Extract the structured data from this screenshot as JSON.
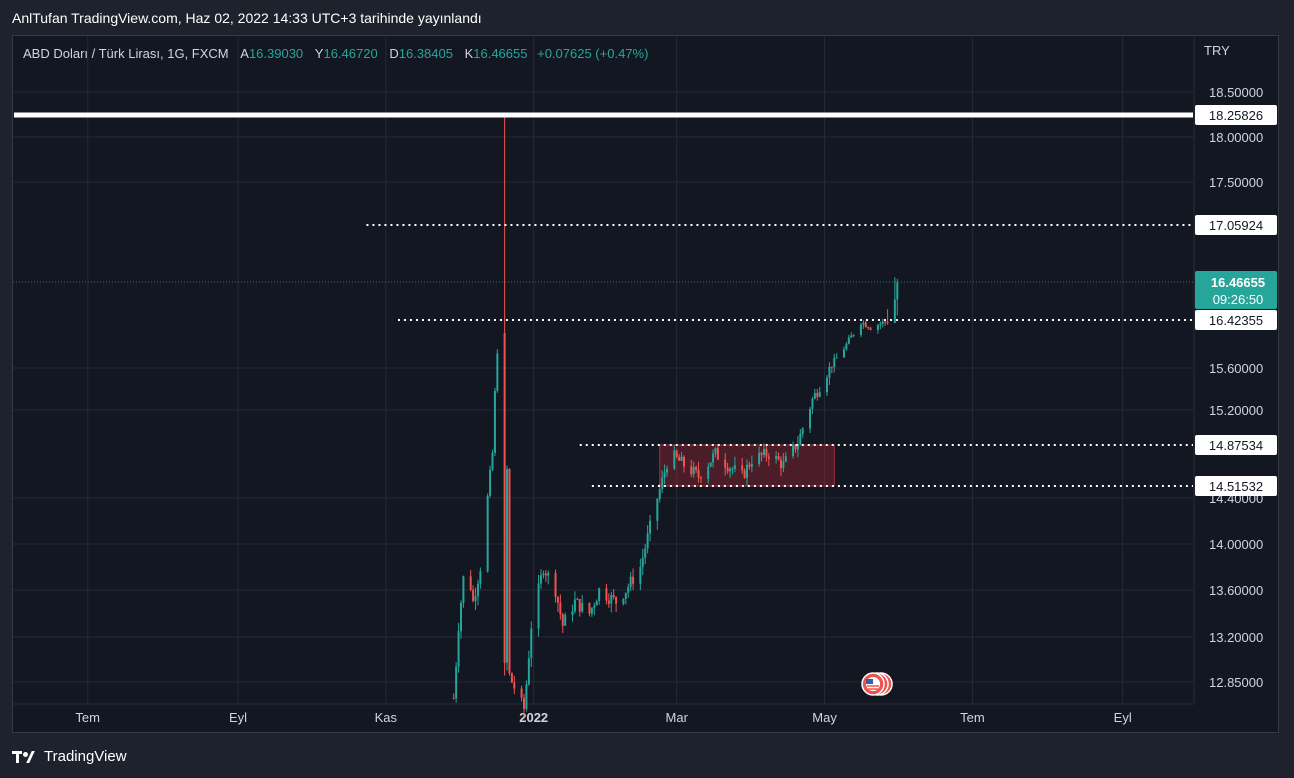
{
  "header": {
    "publish_line": "AnlTufan TradingView.com, Haz 02, 2022 14:33 UTC+3 tarihinde yayınlandı"
  },
  "legend": {
    "symbol": "ABD Doları / Türk Lirası, 1G, FXCM",
    "open_label": "A",
    "open": "16.39030",
    "high_label": "Y",
    "high": "16.46720",
    "low_label": "D",
    "low": "16.38405",
    "close_label": "K",
    "close": "16.46655",
    "change": "+0.07625 (+0.47%)"
  },
  "currency": "TRY",
  "footer": {
    "brand": "TradingView"
  },
  "chart_data": {
    "type": "candlestick",
    "symbol": "USDTRY",
    "y_ticks": [
      "18.50000",
      "18.00000",
      "17.50000",
      "15.60000",
      "15.20000",
      "14.40000",
      "14.00000",
      "13.60000",
      "13.20000",
      "12.85000"
    ],
    "x_ticks": [
      "Tem",
      "Eyl",
      "Kas",
      "2022",
      "Mar",
      "May",
      "Tem",
      "Eyl"
    ],
    "ylim": [
      12.75,
      18.85
    ],
    "date_range": [
      "2021-06-01",
      "2022-09-30"
    ],
    "grid": true,
    "colors": {
      "up": "#26a69a",
      "down": "#ef5350",
      "level": "#ffffff",
      "zone": "#b22833"
    },
    "horizontal_levels": [
      {
        "label": "18.25826",
        "value": 18.25826,
        "style": "solid",
        "from": "2021-06-01"
      },
      {
        "label": "17.05924",
        "value": 17.05924,
        "style": "dotted",
        "from": "2021-10-24"
      },
      {
        "label": "16.42355",
        "value": 16.42355,
        "style": "dotted",
        "from": "2021-11-06"
      },
      {
        "label": "14.87534",
        "value": 14.87534,
        "style": "dotted",
        "from": "2022-01-20"
      },
      {
        "label": "14.51532",
        "value": 14.51532,
        "style": "dotted",
        "from": "2022-01-25"
      }
    ],
    "last_price": {
      "value": "16.46655",
      "countdown": "09:26:50"
    },
    "zone": {
      "from": "2022-02-22",
      "to": "2022-05-05",
      "low": 14.51532,
      "high": 14.87534
    },
    "anchors": [
      [
        "2021-11-29",
        12.7
      ],
      [
        "2021-12-01",
        13.3
      ],
      [
        "2021-12-04",
        13.9
      ],
      [
        "2021-12-07",
        13.5
      ],
      [
        "2021-12-10",
        13.8
      ],
      [
        "2021-12-13",
        14.4
      ],
      [
        "2021-12-15",
        14.8
      ],
      [
        "2021-12-17",
        15.9
      ],
      [
        "2021-12-20",
        16.4
      ],
      [
        "2021-12-22",
        12.9
      ],
      [
        "2021-12-28",
        12.6
      ],
      [
        "2021-12-31",
        13.3
      ],
      [
        "2022-01-05",
        13.8
      ],
      [
        "2022-01-10",
        13.6
      ],
      [
        "2022-01-13",
        13.3
      ],
      [
        "2022-01-18",
        13.5
      ],
      [
        "2022-01-24",
        13.4
      ],
      [
        "2022-01-28",
        13.6
      ],
      [
        "2022-02-04",
        13.5
      ],
      [
        "2022-02-08",
        13.6
      ],
      [
        "2022-02-14",
        13.8
      ],
      [
        "2022-02-21",
        14.4
      ],
      [
        "2022-02-26",
        14.8
      ],
      [
        "2022-03-04",
        14.7
      ],
      [
        "2022-03-10",
        14.6
      ],
      [
        "2022-03-17",
        14.8
      ],
      [
        "2022-03-22",
        14.7
      ],
      [
        "2022-03-28",
        14.6
      ],
      [
        "2022-04-01",
        14.75
      ],
      [
        "2022-04-08",
        14.8
      ],
      [
        "2022-04-14",
        14.7
      ],
      [
        "2022-04-20",
        14.9
      ],
      [
        "2022-04-26",
        15.3
      ],
      [
        "2022-05-03",
        15.6
      ],
      [
        "2022-05-10",
        16.0
      ],
      [
        "2022-05-16",
        16.4
      ],
      [
        "2022-05-20",
        16.3
      ],
      [
        "2022-05-31",
        16.46655
      ]
    ],
    "spike": {
      "date": "2021-12-20",
      "high": 18.25826,
      "low": 12.9
    }
  }
}
